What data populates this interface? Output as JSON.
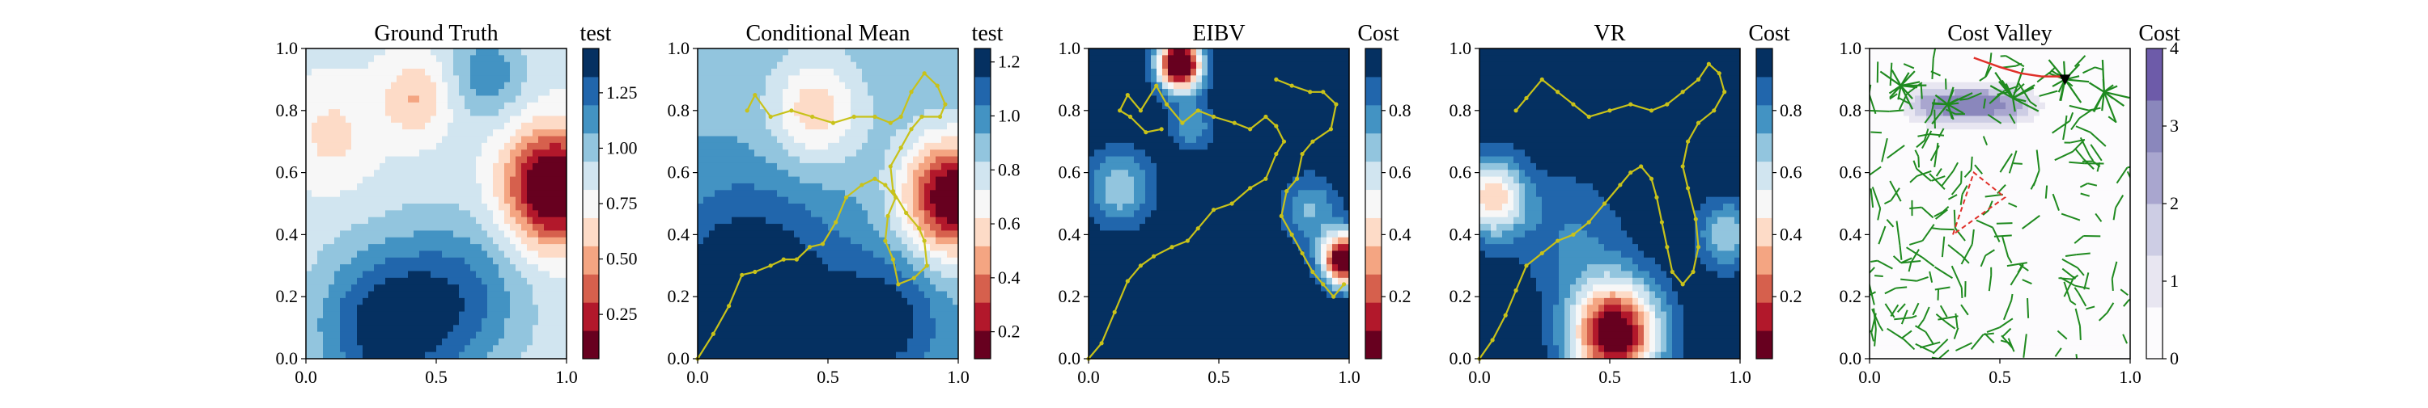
{
  "chart_data": [
    {
      "type": "heatmap",
      "title": "Ground Truth",
      "colorbar_label": "test",
      "colormap": "RdBu",
      "colorbar_ticks": [
        "0.25",
        "0.50",
        "0.75",
        "1.00",
        "1.25"
      ],
      "colorbar_range": [
        0.05,
        1.45
      ],
      "xticks": [
        "0.0",
        "0.5",
        "1.0"
      ],
      "yticks": [
        "0.0",
        "0.2",
        "0.4",
        "0.6",
        "0.8",
        "1.0"
      ],
      "xlim": [
        0,
        1
      ],
      "ylim": [
        0,
        1
      ],
      "field": [
        {
          "x": 0.95,
          "y": 0.55,
          "weight": -0.95,
          "spread": 0.13
        },
        {
          "x": 0.42,
          "y": 0.84,
          "weight": -0.3,
          "spread": 0.09
        },
        {
          "x": 0.1,
          "y": 0.72,
          "weight": -0.2,
          "spread": 0.12
        },
        {
          "x": 0.3,
          "y": 0.1,
          "weight": 0.55,
          "spread": 0.18
        },
        {
          "x": 0.6,
          "y": 0.2,
          "weight": 0.35,
          "spread": 0.18
        },
        {
          "x": 0.7,
          "y": 0.92,
          "weight": 0.3,
          "spread": 0.1
        }
      ],
      "field_base": 0.85
    },
    {
      "type": "heatmap",
      "title": "Conditional Mean",
      "colorbar_label": "test",
      "colormap": "RdBu",
      "colorbar_ticks": [
        "0.2",
        "0.4",
        "0.6",
        "0.8",
        "1.0",
        "1.2"
      ],
      "colorbar_range": [
        0.1,
        1.25
      ],
      "xticks": [
        "0.0",
        "0.5",
        "1.0"
      ],
      "yticks": [
        "0.0",
        "0.2",
        "0.4",
        "0.6",
        "0.8",
        "1.0"
      ],
      "xlim": [
        0,
        1
      ],
      "ylim": [
        0,
        1
      ],
      "field": [
        {
          "x": 0.98,
          "y": 0.52,
          "weight": -0.85,
          "spread": 0.13
        },
        {
          "x": 0.45,
          "y": 0.8,
          "weight": -0.35,
          "spread": 0.12
        },
        {
          "x": 0.2,
          "y": 0.18,
          "weight": 0.45,
          "spread": 0.25
        },
        {
          "x": 0.72,
          "y": 0.12,
          "weight": 0.3,
          "spread": 0.15
        }
      ],
      "field_base": 0.9,
      "path": [
        [
          0.0,
          0.0
        ],
        [
          0.06,
          0.08
        ],
        [
          0.12,
          0.17
        ],
        [
          0.17,
          0.27
        ],
        [
          0.22,
          0.28
        ],
        [
          0.28,
          0.3
        ],
        [
          0.33,
          0.32
        ],
        [
          0.38,
          0.32
        ],
        [
          0.43,
          0.36
        ],
        [
          0.48,
          0.37
        ],
        [
          0.53,
          0.44
        ],
        [
          0.57,
          0.52
        ],
        [
          0.63,
          0.56
        ],
        [
          0.68,
          0.58
        ],
        [
          0.72,
          0.56
        ],
        [
          0.76,
          0.52
        ],
        [
          0.73,
          0.46
        ],
        [
          0.72,
          0.38
        ],
        [
          0.75,
          0.32
        ],
        [
          0.77,
          0.24
        ],
        [
          0.83,
          0.26
        ],
        [
          0.88,
          0.3
        ],
        [
          0.87,
          0.38
        ],
        [
          0.85,
          0.42
        ],
        [
          0.8,
          0.47
        ],
        [
          0.75,
          0.54
        ],
        [
          0.74,
          0.62
        ],
        [
          0.78,
          0.68
        ],
        [
          0.82,
          0.74
        ],
        [
          0.86,
          0.78
        ],
        [
          0.93,
          0.78
        ],
        [
          0.95,
          0.82
        ],
        [
          0.92,
          0.88
        ],
        [
          0.87,
          0.92
        ],
        [
          0.82,
          0.86
        ],
        [
          0.78,
          0.78
        ],
        [
          0.74,
          0.76
        ],
        [
          0.68,
          0.78
        ],
        [
          0.6,
          0.78
        ],
        [
          0.52,
          0.76
        ],
        [
          0.44,
          0.78
        ],
        [
          0.36,
          0.8
        ],
        [
          0.28,
          0.78
        ],
        [
          0.22,
          0.85
        ],
        [
          0.19,
          0.8
        ]
      ]
    },
    {
      "type": "heatmap",
      "title": "EIBV",
      "colorbar_label": "Cost",
      "colormap": "RdBu",
      "colorbar_ticks": [
        "0.2",
        "0.4",
        "0.6",
        "0.8"
      ],
      "colorbar_range": [
        0.0,
        1.0
      ],
      "xticks": [
        "0.0",
        "0.5",
        "1.0"
      ],
      "yticks": [
        "0.0",
        "0.2",
        "0.4",
        "0.6",
        "0.8",
        "1.0"
      ],
      "xlim": [
        0,
        1
      ],
      "ylim": [
        0,
        1
      ],
      "field": [
        {
          "x": 0.35,
          "y": 0.95,
          "weight": -1.2,
          "spread": 0.06
        },
        {
          "x": 0.98,
          "y": 0.32,
          "weight": -1.1,
          "spread": 0.06
        },
        {
          "x": 0.12,
          "y": 0.55,
          "weight": -0.35,
          "spread": 0.09
        },
        {
          "x": 0.85,
          "y": 0.48,
          "weight": -0.28,
          "spread": 0.08
        },
        {
          "x": 0.4,
          "y": 0.75,
          "weight": -0.25,
          "spread": 0.06
        }
      ],
      "field_base": 1.0,
      "path": [
        [
          0.0,
          0.0
        ],
        [
          0.05,
          0.05
        ],
        [
          0.1,
          0.15
        ],
        [
          0.15,
          0.25
        ],
        [
          0.2,
          0.3
        ],
        [
          0.25,
          0.33
        ],
        [
          0.32,
          0.36
        ],
        [
          0.38,
          0.38
        ],
        [
          0.42,
          0.42
        ],
        [
          0.48,
          0.48
        ],
        [
          0.55,
          0.5
        ],
        [
          0.62,
          0.55
        ],
        [
          0.68,
          0.58
        ],
        [
          0.72,
          0.66
        ],
        [
          0.75,
          0.7
        ],
        [
          0.72,
          0.75
        ],
        [
          0.68,
          0.78
        ],
        [
          0.62,
          0.74
        ],
        [
          0.56,
          0.76
        ],
        [
          0.48,
          0.78
        ],
        [
          0.42,
          0.8
        ],
        [
          0.36,
          0.76
        ],
        [
          0.3,
          0.82
        ],
        [
          0.26,
          0.88
        ],
        [
          0.2,
          0.8
        ],
        [
          0.15,
          0.85
        ],
        [
          0.12,
          0.8
        ],
        [
          0.16,
          0.78
        ],
        [
          0.22,
          0.73
        ],
        [
          0.28,
          0.74
        ]
      ],
      "path2": [
        [
          0.72,
          0.9
        ],
        [
          0.78,
          0.88
        ],
        [
          0.85,
          0.86
        ],
        [
          0.9,
          0.86
        ],
        [
          0.95,
          0.82
        ],
        [
          0.93,
          0.74
        ],
        [
          0.86,
          0.7
        ],
        [
          0.82,
          0.66
        ],
        [
          0.8,
          0.58
        ],
        [
          0.76,
          0.54
        ],
        [
          0.74,
          0.46
        ],
        [
          0.78,
          0.4
        ],
        [
          0.82,
          0.34
        ],
        [
          0.86,
          0.28
        ],
        [
          0.9,
          0.24
        ],
        [
          0.94,
          0.2
        ],
        [
          0.98,
          0.24
        ]
      ]
    },
    {
      "type": "heatmap",
      "title": "VR",
      "colorbar_label": "Cost",
      "colormap": "RdBu",
      "colorbar_ticks": [
        "0.2",
        "0.4",
        "0.6",
        "0.8"
      ],
      "colorbar_range": [
        0.0,
        1.0
      ],
      "xticks": [
        "0.0",
        "0.5",
        "1.0"
      ],
      "yticks": [
        "0.0",
        "0.2",
        "0.4",
        "0.6",
        "0.8",
        "1.0"
      ],
      "xlim": [
        0,
        1
      ],
      "ylim": [
        0,
        1
      ],
      "field": [
        {
          "x": 0.52,
          "y": 0.08,
          "weight": -1.05,
          "spread": 0.12
        },
        {
          "x": 0.05,
          "y": 0.52,
          "weight": -0.6,
          "spread": 0.09
        },
        {
          "x": 0.95,
          "y": 0.4,
          "weight": -0.35,
          "spread": 0.08
        },
        {
          "x": 0.35,
          "y": 0.4,
          "weight": -0.18,
          "spread": 0.15
        }
      ],
      "field_base": 1.0,
      "path": [
        [
          0.0,
          0.0
        ],
        [
          0.05,
          0.06
        ],
        [
          0.1,
          0.14
        ],
        [
          0.14,
          0.22
        ],
        [
          0.18,
          0.3
        ],
        [
          0.24,
          0.34
        ],
        [
          0.3,
          0.38
        ],
        [
          0.36,
          0.4
        ],
        [
          0.42,
          0.44
        ],
        [
          0.48,
          0.5
        ],
        [
          0.54,
          0.56
        ],
        [
          0.58,
          0.6
        ],
        [
          0.62,
          0.62
        ],
        [
          0.66,
          0.58
        ],
        [
          0.68,
          0.52
        ],
        [
          0.7,
          0.44
        ],
        [
          0.72,
          0.36
        ],
        [
          0.74,
          0.28
        ],
        [
          0.78,
          0.24
        ],
        [
          0.82,
          0.28
        ],
        [
          0.84,
          0.36
        ],
        [
          0.83,
          0.45
        ],
        [
          0.8,
          0.55
        ],
        [
          0.78,
          0.62
        ],
        [
          0.8,
          0.7
        ],
        [
          0.84,
          0.76
        ],
        [
          0.9,
          0.8
        ],
        [
          0.94,
          0.86
        ],
        [
          0.92,
          0.92
        ],
        [
          0.88,
          0.95
        ],
        [
          0.84,
          0.9
        ],
        [
          0.78,
          0.86
        ],
        [
          0.72,
          0.82
        ],
        [
          0.66,
          0.8
        ],
        [
          0.58,
          0.82
        ],
        [
          0.5,
          0.8
        ],
        [
          0.42,
          0.78
        ],
        [
          0.36,
          0.82
        ],
        [
          0.3,
          0.86
        ],
        [
          0.24,
          0.9
        ],
        [
          0.18,
          0.84
        ],
        [
          0.14,
          0.8
        ]
      ]
    },
    {
      "type": "heatmap",
      "title": "Cost Valley",
      "colorbar_label": "Cost",
      "colormap": "Purples",
      "colorbar_ticks": [
        "0",
        "1",
        "2",
        "3",
        "4"
      ],
      "colorbar_range": [
        0,
        4
      ],
      "xticks": [
        "0.0",
        "0.5",
        "1.0"
      ],
      "yticks": [
        "0.0",
        "0.2",
        "0.4",
        "0.6",
        "0.8",
        "1.0"
      ],
      "xlim": [
        0,
        1
      ],
      "ylim": [
        0,
        1
      ],
      "field": [
        {
          "x": 0.35,
          "y": 0.8,
          "weight": 2.6,
          "spread": 0.09
        },
        {
          "x": 0.52,
          "y": 0.8,
          "weight": 2.4,
          "spread": 0.09
        },
        {
          "x": 0.22,
          "y": 0.82,
          "weight": 1.6,
          "spread": 0.07
        },
        {
          "x": 0.42,
          "y": 0.95,
          "weight": 1.4,
          "spread": 0.05
        }
      ],
      "field_base": 0.0,
      "tree_color": "#1f8a1f",
      "triangle": [
        [
          0.32,
          0.4
        ],
        [
          0.4,
          0.6
        ],
        [
          0.52,
          0.52
        ]
      ],
      "route": [
        [
          0.4,
          0.97
        ],
        [
          0.5,
          0.94
        ],
        [
          0.58,
          0.92
        ],
        [
          0.66,
          0.91
        ],
        [
          0.75,
          0.91
        ]
      ],
      "start_marker": [
        0.75,
        0.9
      ],
      "tree_seed": 7
    }
  ]
}
